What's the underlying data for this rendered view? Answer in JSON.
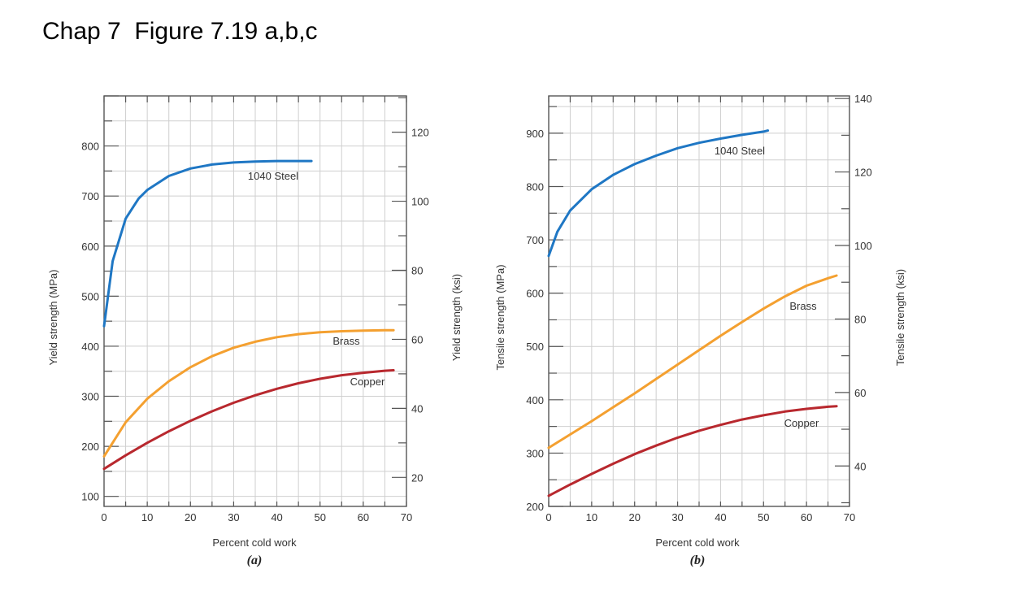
{
  "page": {
    "title": "Chap 7  Figure 7.19 a,b,c"
  },
  "chart_data": [
    {
      "type": "line",
      "panel_label": "(a)",
      "xlabel": "Percent cold work",
      "ylabel": "Yield strength (MPa)",
      "ylabel_right": "Yield strength (ksi)",
      "xlim": [
        0,
        70
      ],
      "ylim": [
        80,
        900
      ],
      "ylim_right": [
        11.6,
        130.5
      ],
      "x_ticks": [
        0,
        10,
        20,
        30,
        40,
        50,
        60,
        70
      ],
      "y_ticks": [
        100,
        200,
        300,
        400,
        500,
        600,
        700,
        800
      ],
      "y_right_ticks": [
        20,
        40,
        60,
        80,
        100,
        120
      ],
      "series": [
        {
          "name": "1040 Steel",
          "color": "#1f77c4",
          "x": [
            0,
            2,
            5,
            8,
            10,
            15,
            20,
            25,
            30,
            35,
            40,
            45,
            48
          ],
          "values": [
            440,
            570,
            655,
            695,
            712,
            740,
            755,
            763,
            767,
            769,
            770,
            770,
            770
          ]
        },
        {
          "name": "Brass",
          "color": "#f4a030",
          "x": [
            0,
            5,
            10,
            15,
            20,
            25,
            30,
            35,
            40,
            45,
            50,
            55,
            60,
            65,
            67
          ],
          "values": [
            180,
            248,
            295,
            330,
            358,
            380,
            397,
            409,
            418,
            424,
            428,
            430,
            431,
            432,
            432
          ]
        },
        {
          "name": "Copper",
          "color": "#b8282e",
          "x": [
            0,
            5,
            10,
            15,
            20,
            25,
            30,
            35,
            40,
            45,
            50,
            55,
            60,
            65,
            67
          ],
          "values": [
            155,
            182,
            207,
            230,
            251,
            270,
            287,
            302,
            315,
            326,
            335,
            342,
            347,
            351,
            352
          ]
        }
      ]
    },
    {
      "type": "line",
      "panel_label": "(b)",
      "xlabel": "Percent cold work",
      "ylabel": "Tensile strength (MPa)",
      "ylabel_right": "Tensile strength (ksi)",
      "xlim": [
        0,
        70
      ],
      "ylim": [
        200,
        970
      ],
      "ylim_right": [
        29,
        140.7
      ],
      "x_ticks": [
        0,
        10,
        20,
        30,
        40,
        50,
        60,
        70
      ],
      "y_ticks": [
        200,
        300,
        400,
        500,
        600,
        700,
        800,
        900
      ],
      "y_right_ticks": [
        40,
        60,
        80,
        100,
        120,
        140
      ],
      "series": [
        {
          "name": "1040 Steel",
          "color": "#1f77c4",
          "x": [
            0,
            2,
            5,
            10,
            15,
            20,
            25,
            30,
            35,
            40,
            45,
            50,
            51
          ],
          "values": [
            670,
            715,
            755,
            795,
            822,
            842,
            858,
            872,
            882,
            890,
            897,
            903,
            905
          ]
        },
        {
          "name": "Brass",
          "color": "#f4a030",
          "x": [
            0,
            5,
            10,
            15,
            20,
            25,
            30,
            35,
            40,
            45,
            50,
            55,
            60,
            65,
            67
          ],
          "values": [
            310,
            335,
            360,
            386,
            412,
            439,
            466,
            493,
            520,
            546,
            571,
            594,
            614,
            628,
            633
          ]
        },
        {
          "name": "Copper",
          "color": "#b8282e",
          "x": [
            0,
            5,
            10,
            15,
            20,
            25,
            30,
            35,
            40,
            45,
            50,
            55,
            60,
            65,
            67
          ],
          "values": [
            220,
            241,
            261,
            280,
            298,
            314,
            329,
            342,
            353,
            363,
            371,
            378,
            383,
            387,
            388
          ]
        }
      ]
    }
  ]
}
